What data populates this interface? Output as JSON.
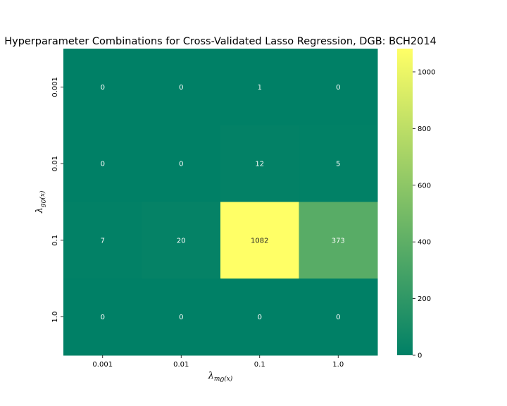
{
  "chart_data": {
    "type": "heatmap",
    "title": "Hyperparameter Combinations for Cross-Validated Lasso Regression, DGB: BCH2014",
    "x_categories": [
      "0.001",
      "0.01",
      "0.1",
      "1.0"
    ],
    "y_categories": [
      "0.001",
      "0.01",
      "0.1",
      "1.0"
    ],
    "values": [
      [
        0,
        0,
        1,
        0
      ],
      [
        0,
        0,
        12,
        5
      ],
      [
        7,
        20,
        1082,
        373
      ],
      [
        0,
        0,
        0,
        0
      ]
    ],
    "xlabel": {
      "base": "λ",
      "sub": "m",
      "subsub": "0",
      "arg": "(x)"
    },
    "ylabel": {
      "base": "λ",
      "sub": "g",
      "subsub": "0",
      "arg": "(x)"
    },
    "colorbar": {
      "min": 0,
      "max": 1082,
      "ticks": [
        0,
        200,
        400,
        600,
        800,
        1000
      ],
      "colormap": "summer",
      "color_low": "#008066",
      "color_high": "#ffff66"
    },
    "grid": false
  }
}
